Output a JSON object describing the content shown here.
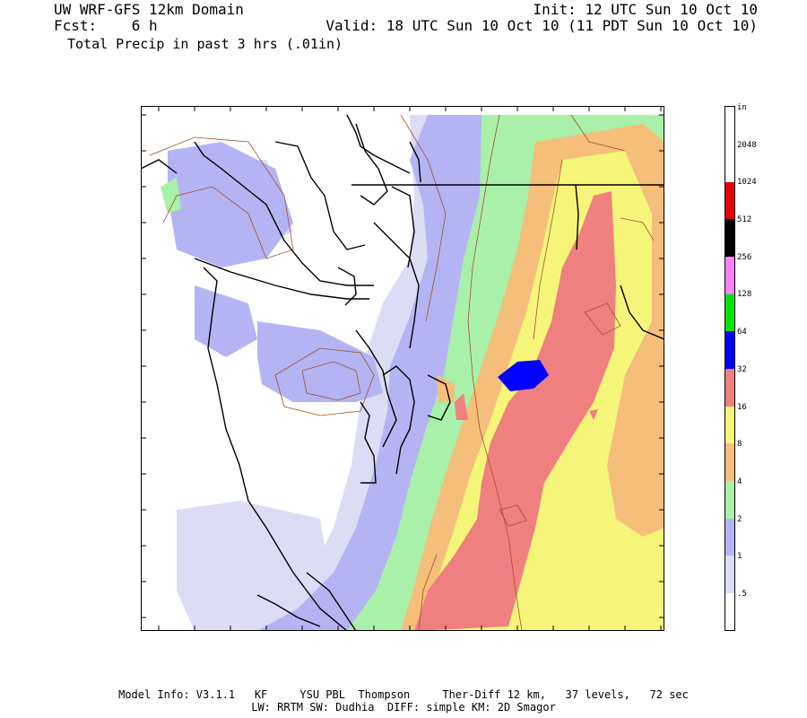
{
  "header": {
    "title": "UW WRF-GFS 12km Domain",
    "init": "Init: 12 UTC Sun 10 Oct 10",
    "fcst": "Fcst:    6 h",
    "valid": "Valid: 18 UTC Sun 10 Oct 10 (11 PDT Sun 10 Oct 10)",
    "field": "Total Precip in past 3 hrs (.01in)"
  },
  "colorbar": {
    "unit": "in",
    "labels": [
      "2048",
      "1024",
      "512",
      "256",
      "128",
      "64",
      "32",
      "16",
      "8",
      "4",
      "2",
      "1",
      ".5"
    ],
    "colors": {
      "c2048": "#ffffff",
      "c1024": "#e60000",
      "c512": "#000000",
      "c256": "#ff7fff",
      "c128": "#00e600",
      "c64": "#0000ff",
      "c32": "#f08080",
      "c16": "#f5f57a",
      "c8": "#f5be7a",
      "c4": "#a9f0a9",
      "c2": "#b4b4f5",
      "c1": "#dcdcf5",
      "c05": "#ffffff"
    }
  },
  "footer": {
    "line1": "Model Info: V3.1.1   KF     YSU PBL  Thompson     Ther-Diff 12 km,   37 levels,   72 sec",
    "line2": "LW: RRTM SW: Dudhia  DIFF: simple KM: 2D Smagor"
  }
}
